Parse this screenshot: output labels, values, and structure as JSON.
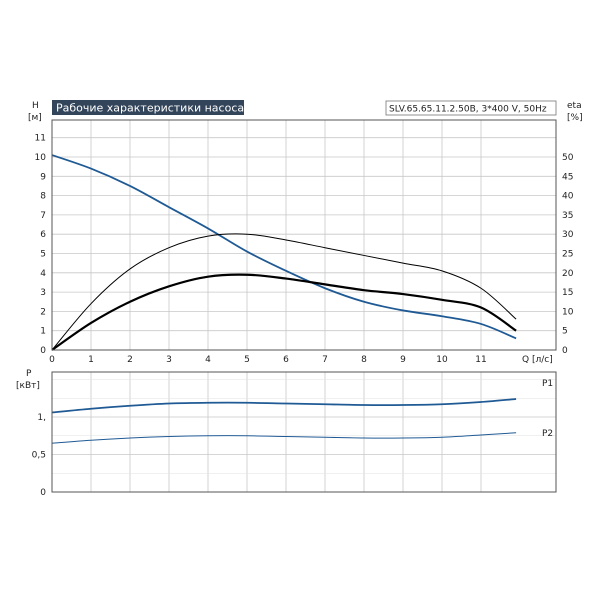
{
  "chart_data": [
    {
      "type": "line",
      "title": "Рабочие характеристики насоса",
      "subtitle": "SLV.65.65.11.2.50B, 3*400 V, 50Hz",
      "xlabel": "Q [л/с]",
      "ylabel": "H",
      "ylabel_unit": "[м]",
      "y2label": "eta",
      "y2label_unit": "[%]",
      "xlim": [
        0,
        12
      ],
      "ylim": [
        0,
        12
      ],
      "y2lim": [
        0,
        60
      ],
      "x_ticks": [
        "0",
        "1",
        "2",
        "3",
        "4",
        "5",
        "6",
        "7",
        "8",
        "9",
        "10",
        "11"
      ],
      "y_ticks": [
        "0",
        "1",
        "2",
        "3",
        "4",
        "5",
        "6",
        "7",
        "8",
        "9",
        "10",
        "11"
      ],
      "y2_ticks": [
        "0",
        "5",
        "10",
        "15",
        "20",
        "25",
        "30",
        "35",
        "40",
        "45",
        "50"
      ],
      "grid": true,
      "series": [
        {
          "name": "",
          "axis": "left",
          "color": "#1f5a94",
          "x": [
            0,
            1,
            2,
            3,
            4,
            5,
            6,
            7,
            8,
            9,
            10,
            11,
            11.9
          ],
          "y": [
            10.1,
            9.4,
            8.5,
            7.4,
            6.3,
            5.1,
            4.1,
            3.2,
            2.5,
            2.05,
            1.75,
            1.35,
            0.6
          ]
        },
        {
          "name": "",
          "axis": "right",
          "color": "#000000",
          "x": [
            0,
            1,
            2,
            3,
            4,
            5,
            6,
            7,
            8,
            9,
            10,
            11,
            11.9
          ],
          "y": [
            0,
            7,
            12.5,
            16.5,
            19,
            19.5,
            18.5,
            17,
            15.5,
            14.5,
            13,
            11,
            5
          ]
        },
        {
          "name": "",
          "axis": "right",
          "color": "#000000",
          "x": [
            0,
            1,
            2,
            3,
            4,
            5,
            6,
            7,
            8,
            9,
            10,
            11,
            11.9
          ],
          "y": [
            0,
            12,
            21,
            26.5,
            29.5,
            30,
            28.5,
            26.5,
            24.5,
            22.5,
            20.5,
            16,
            8
          ]
        }
      ]
    },
    {
      "type": "line",
      "ylabel": "P",
      "ylabel_unit": "[кВт]",
      "xlim": [
        0,
        12
      ],
      "ylim": [
        0,
        1.7
      ],
      "y_ticks": [
        "0",
        "0,5",
        "1,"
      ],
      "y_tick_values": [
        0,
        0.5,
        1
      ],
      "grid": true,
      "series": [
        {
          "name": "P1",
          "color": "#1f5a94",
          "x": [
            0,
            1,
            2,
            3,
            4,
            5,
            6,
            7,
            8,
            9,
            10,
            11,
            11.9
          ],
          "y": [
            1.06,
            1.11,
            1.15,
            1.18,
            1.19,
            1.19,
            1.18,
            1.17,
            1.16,
            1.16,
            1.17,
            1.2,
            1.24
          ]
        },
        {
          "name": "P2",
          "color": "#1f5a94",
          "x": [
            0,
            1,
            2,
            3,
            4,
            5,
            6,
            7,
            8,
            9,
            10,
            11,
            11.9
          ],
          "y": [
            0.65,
            0.69,
            0.72,
            0.74,
            0.75,
            0.75,
            0.74,
            0.73,
            0.72,
            0.72,
            0.73,
            0.76,
            0.79
          ]
        }
      ]
    }
  ]
}
